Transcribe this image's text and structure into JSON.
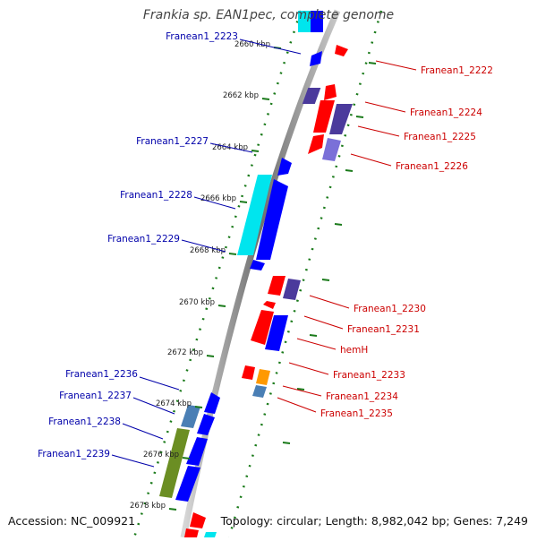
{
  "title": "Frankia sp. EAN1pec, complete genome",
  "footer": {
    "accession": "Accession: NC_009921",
    "summary": "Topology: circular; Length: 8,982,042 bp; Genes: 7,249"
  },
  "colors": {
    "axis": "#8a8a8a",
    "tick": "#1a7a1a",
    "plus_label": "#0000aa",
    "minus_label": "#cc0000",
    "blue": "#0000ff",
    "red": "#ff0000",
    "cyan": "#00e5ee",
    "navy": "#4b3a9c",
    "slate": "#7a70d8",
    "steel": "#4a7fb5",
    "olive": "#6b8e23",
    "orange": "#ff9900"
  },
  "ticks": [
    {
      "label": "2660 kbp",
      "kbp": 2660
    },
    {
      "label": "2662 kbp",
      "kbp": 2662
    },
    {
      "label": "2664 kbp",
      "kbp": 2664
    },
    {
      "label": "2666 kbp",
      "kbp": 2666
    },
    {
      "label": "2668 kbp",
      "kbp": 2668
    },
    {
      "label": "2670 kbp",
      "kbp": 2670
    },
    {
      "label": "2672 kbp",
      "kbp": 2672
    },
    {
      "label": "2674 kbp",
      "kbp": 2674
    },
    {
      "label": "2676 kbp",
      "kbp": 2676
    },
    {
      "label": "2678 kbp",
      "kbp": 2678
    }
  ],
  "genes": [
    {
      "label": "Franean1_2222",
      "strand": "-",
      "start": 2660.35,
      "end": 2660.75,
      "color": "red"
    },
    {
      "label": "Franean1_2223",
      "strand": "+",
      "start": 2660.2,
      "end": 2660.6,
      "color": "blue"
    },
    {
      "label": "Franean1_2224",
      "strand": "-",
      "start": 2661.55,
      "end": 2662.2,
      "color": "navy"
    },
    {
      "label": "Franean1_2225",
      "strand": "-",
      "start": 2662.25,
      "end": 2663.2,
      "color": "red"
    },
    {
      "label": "Franean1_2226",
      "strand": "-",
      "start": 2663.35,
      "end": 2663.95,
      "color": "slate"
    },
    {
      "label": "Franean1_2227",
      "strand": "+",
      "start": 2664.7,
      "end": 2665.2,
      "color": "blue"
    },
    {
      "label": "Franean1_2228",
      "strand": "+",
      "start": 2665.3,
      "end": 2667.4,
      "color": "cyan"
    },
    {
      "label": "Franean1_2229",
      "strand": "+",
      "start": 2665.3,
      "end": 2668.3,
      "color": "blue"
    },
    {
      "label": "Franean1_2230",
      "strand": "-",
      "start": 2669.25,
      "end": 2669.8,
      "color": "navy"
    },
    {
      "label": "Franean1_2231",
      "strand": "-",
      "start": 2670.5,
      "end": 2671.6,
      "color": "red"
    },
    {
      "label": "hemH",
      "strand": "-",
      "start": 2670.55,
      "end": 2671.65,
      "color": "blue"
    },
    {
      "label": "Franean1_2233",
      "strand": "-",
      "start": 2672.3,
      "end": 2672.75,
      "color": "red"
    },
    {
      "label": "Franean1_2234",
      "strand": "-",
      "start": 2672.45,
      "end": 2672.85,
      "color": "orange"
    },
    {
      "label": "Franean1_2235",
      "strand": "-",
      "start": 2672.9,
      "end": 2673.2,
      "color": "steel"
    },
    {
      "label": "Franean1_2236",
      "strand": "+",
      "start": 2673.0,
      "end": 2673.6,
      "color": "blue"
    },
    {
      "label": "Franean1_2237",
      "strand": "+",
      "start": 2673.8,
      "end": 2674.6,
      "color": "steel"
    },
    {
      "label": "Franean1_2238",
      "strand": "+",
      "start": 2674.7,
      "end": 2675.6,
      "color": "blue"
    },
    {
      "label": "Franean1_2239",
      "strand": "+",
      "start": 2676.7,
      "end": 2677.9,
      "color": "blue"
    }
  ]
}
